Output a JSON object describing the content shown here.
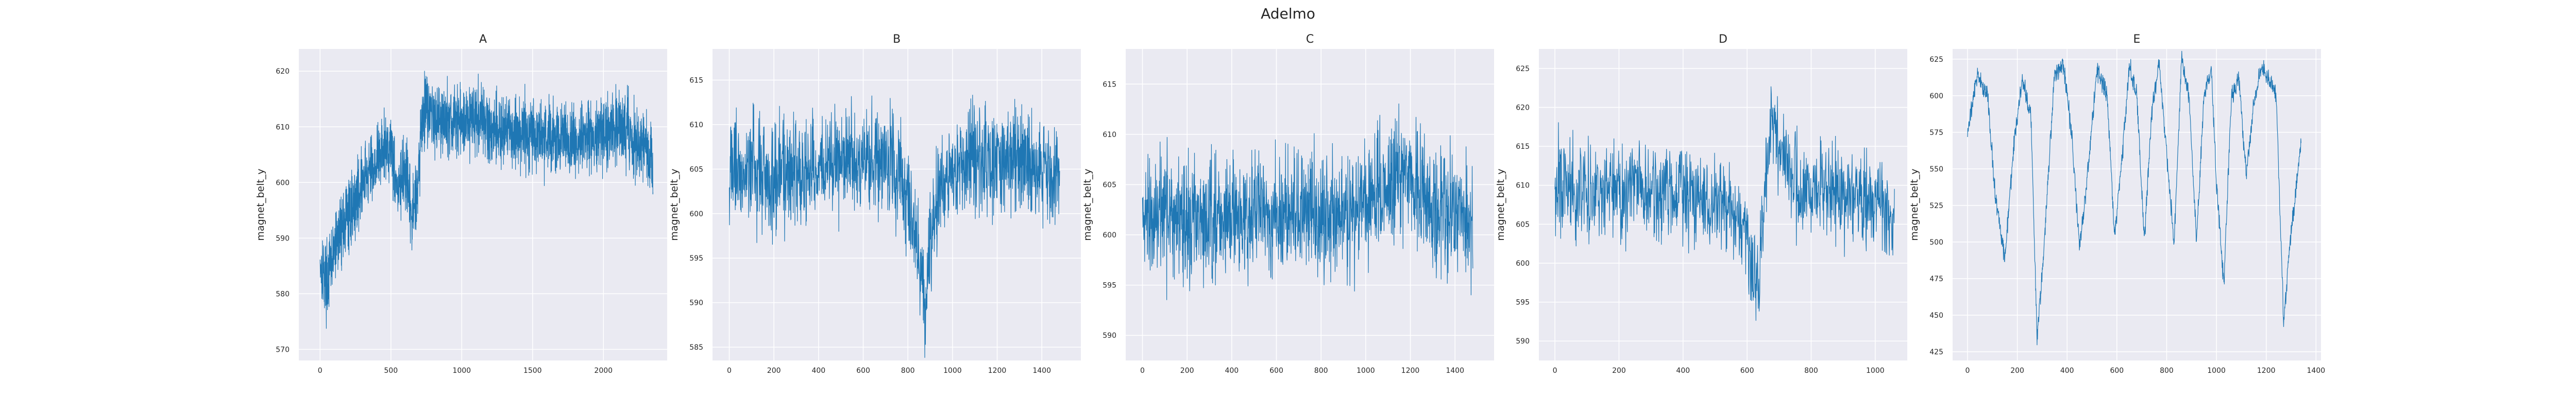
{
  "figure_title": "Adelmo",
  "ylabel": "magnet_belt_y",
  "colors": {
    "line": "#1f77b4",
    "plot_bg": "#eaeaf2",
    "grid": "#ffffff"
  },
  "chart_data": [
    {
      "type": "line",
      "title": "A",
      "xlabel": "",
      "ylabel": "magnet_belt_y",
      "xlim": [
        -150,
        2450
      ],
      "ylim": [
        568,
        624
      ],
      "xticks": [
        0,
        500,
        1000,
        1500,
        2000
      ],
      "yticks": [
        570,
        580,
        590,
        600,
        610,
        620
      ],
      "n_points": 2350,
      "x": [
        0,
        50,
        100,
        150,
        200,
        250,
        300,
        350,
        400,
        450,
        500,
        550,
        600,
        650,
        700,
        720,
        750,
        800,
        900,
        1000,
        1100,
        1200,
        1300,
        1400,
        1500,
        1600,
        1700,
        1800,
        1900,
        2000,
        2100,
        2200,
        2300,
        2350
      ],
      "y": [
        586,
        582,
        588,
        592,
        594,
        597,
        600,
        602,
        604,
        606,
        607,
        598,
        602,
        593,
        603,
        612,
        614,
        612,
        611,
        611,
        612,
        610,
        609,
        609,
        609,
        608,
        608,
        607,
        608,
        609,
        610,
        608,
        606,
        603
      ],
      "noise": 3.2
    },
    {
      "type": "line",
      "title": "B",
      "xlabel": "",
      "ylabel": "magnet_belt_y",
      "xlim": [
        -75,
        1575
      ],
      "ylim": [
        583.5,
        618.5
      ],
      "xticks": [
        0,
        200,
        400,
        600,
        800,
        1000,
        1200,
        1400
      ],
      "yticks": [
        585,
        590,
        595,
        600,
        605,
        610,
        615
      ],
      "n_points": 1500,
      "x": [
        0,
        100,
        200,
        300,
        400,
        500,
        600,
        700,
        750,
        800,
        850,
        880,
        900,
        950,
        1000,
        1100,
        1200,
        1300,
        1400,
        1480
      ],
      "y": [
        605,
        605,
        604,
        605,
        605,
        606,
        606,
        606,
        604,
        603,
        595,
        589,
        597,
        603,
        605,
        606,
        606,
        606,
        605,
        604
      ],
      "noise": 3.0
    },
    {
      "type": "line",
      "title": "C",
      "xlabel": "",
      "ylabel": "magnet_belt_y",
      "xlim": [
        -75,
        1575
      ],
      "ylim": [
        587.5,
        618.5
      ],
      "xticks": [
        0,
        200,
        400,
        600,
        800,
        1000,
        1200,
        1400
      ],
      "yticks": [
        590,
        595,
        600,
        605,
        610,
        615
      ],
      "n_points": 1500,
      "x": [
        0,
        100,
        200,
        300,
        400,
        500,
        600,
        700,
        800,
        900,
        1000,
        1100,
        1150,
        1200,
        1300,
        1400,
        1480
      ],
      "y": [
        602,
        602,
        602,
        601,
        602,
        602,
        602,
        603,
        602,
        602,
        603,
        605,
        606,
        605,
        603,
        602,
        601
      ],
      "noise": 3.0
    },
    {
      "type": "line",
      "title": "D",
      "xlabel": "",
      "ylabel": "magnet_belt_y",
      "xlim": [
        -50,
        1100
      ],
      "ylim": [
        587.5,
        627.5
      ],
      "xticks": [
        0,
        200,
        400,
        600,
        800,
        1000
      ],
      "yticks": [
        590,
        595,
        600,
        605,
        610,
        615,
        620,
        625
      ],
      "n_points": 1060,
      "x": [
        0,
        100,
        200,
        300,
        400,
        500,
        550,
        600,
        620,
        640,
        660,
        680,
        700,
        750,
        800,
        900,
        1000,
        1060
      ],
      "y": [
        610,
        609,
        609,
        609,
        609,
        608,
        607,
        603,
        597,
        599,
        613,
        618,
        616,
        610,
        609,
        609,
        608,
        606
      ],
      "noise": 3.0
    },
    {
      "type": "line",
      "title": "E",
      "xlabel": "",
      "ylabel": "magnet_belt_y",
      "xlim": [
        -60,
        1420
      ],
      "ylim": [
        419,
        632
      ],
      "xticks": [
        0,
        200,
        400,
        600,
        800,
        1000,
        1200,
        1400
      ],
      "yticks": [
        425,
        450,
        475,
        500,
        525,
        550,
        575,
        600,
        625
      ],
      "n_points": 1340,
      "x": [
        0,
        40,
        80,
        110,
        150,
        185,
        220,
        255,
        280,
        310,
        350,
        385,
        420,
        450,
        490,
        520,
        560,
        590,
        620,
        650,
        680,
        710,
        740,
        770,
        800,
        830,
        860,
        890,
        920,
        950,
        980,
        1000,
        1030,
        1060,
        1090,
        1120,
        1150,
        1180,
        1210,
        1240,
        1270,
        1290,
        1310,
        1340
      ],
      "y": [
        575,
        615,
        600,
        535,
        488,
        565,
        612,
        585,
        432,
        505,
        615,
        622,
        570,
        495,
        560,
        618,
        602,
        505,
        555,
        620,
        600,
        500,
        590,
        622,
        560,
        498,
        625,
        600,
        500,
        600,
        618,
        540,
        470,
        600,
        612,
        545,
        595,
        620,
        612,
        600,
        445,
        490,
        520,
        568
      ],
      "noise": 3.5
    }
  ]
}
